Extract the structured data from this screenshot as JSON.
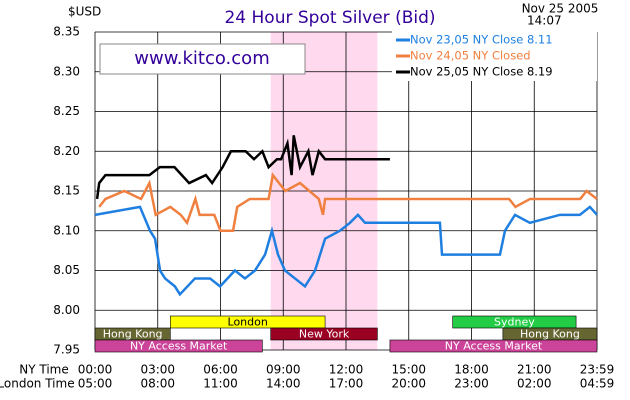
{
  "chart_data": {
    "type": "line",
    "title": "24 Hour Spot Silver (Bid)",
    "y_unit": "$USD",
    "date": "Nov 25 2005",
    "time": "14:07",
    "watermark": "www.kitco.com",
    "x_row_labels": [
      "NY Time",
      "London Time"
    ],
    "xlim": [
      0,
      24
    ],
    "xticks": [
      {
        "value": 0,
        "label": "00:00"
      },
      {
        "value": 3,
        "label": "03:00"
      },
      {
        "value": 6,
        "label": "06:00"
      },
      {
        "value": 9,
        "label": "09:00"
      },
      {
        "value": 12,
        "label": "12:00"
      },
      {
        "value": 15,
        "label": "15:00"
      },
      {
        "value": 18,
        "label": "18:00"
      },
      {
        "value": 21,
        "label": "21:00"
      },
      {
        "value": 24,
        "label": "23:59"
      }
    ],
    "london_tick_labels": [
      "05:00",
      "08:00",
      "11:00",
      "14:00",
      "17:00",
      "20:00",
      "23:00",
      "02:00",
      "04:59"
    ],
    "ylim": [
      7.95,
      8.35
    ],
    "yticks": [
      {
        "value": 7.95,
        "label": "7.95"
      },
      {
        "value": 8.0,
        "label": "8.00"
      },
      {
        "value": 8.05,
        "label": "8.05"
      },
      {
        "value": 8.1,
        "label": "8.10"
      },
      {
        "value": 8.15,
        "label": "8.15"
      },
      {
        "value": 8.2,
        "label": "8.20"
      },
      {
        "value": 8.25,
        "label": "8.25"
      },
      {
        "value": 8.3,
        "label": "8.30"
      },
      {
        "value": 8.35,
        "label": "8.35"
      }
    ],
    "grid": true,
    "highlight": {
      "start": 8.4,
      "end": 13.5,
      "color": "#ffdaee"
    },
    "series": [
      {
        "name": "Nov 23,05 NY Close 8.11",
        "color": "#1e7fe0",
        "x": [
          0,
          2.15,
          2.63,
          2.87,
          3.11,
          3.35,
          3.82,
          4.06,
          4.78,
          5.5,
          5.98,
          6.69,
          7.17,
          7.65,
          8.13,
          8.46,
          8.75,
          9.08,
          9.56,
          10.04,
          10.52,
          11.0,
          11.71,
          12.19,
          12.57,
          12.91,
          16.01,
          16.49,
          16.59,
          19.36,
          19.6,
          20.08,
          20.79,
          22.23,
          23.18,
          23.66,
          24
        ],
        "values": [
          8.12,
          8.13,
          8.1,
          8.09,
          8.05,
          8.04,
          8.03,
          8.02,
          8.04,
          8.04,
          8.03,
          8.05,
          8.04,
          8.05,
          8.07,
          8.1,
          8.07,
          8.05,
          8.04,
          8.03,
          8.05,
          8.09,
          8.1,
          8.11,
          8.12,
          8.11,
          8.11,
          8.11,
          8.07,
          8.07,
          8.1,
          8.12,
          8.11,
          8.12,
          8.12,
          8.13,
          8.12
        ]
      },
      {
        "name": "Nov 24,05 NY Closed",
        "color": "#f08040",
        "x": [
          0.2,
          0.5,
          1.4,
          2.2,
          2.6,
          2.9,
          3.6,
          4.1,
          4.4,
          4.8,
          5.0,
          5.7,
          6.0,
          6.6,
          6.8,
          7.4,
          8.3,
          8.5,
          9.1,
          9.8,
          10.7,
          10.9,
          11.0,
          19.8,
          20.1,
          20.8,
          23.2,
          23.5,
          24
        ],
        "values": [
          8.13,
          8.14,
          8.15,
          8.14,
          8.16,
          8.12,
          8.13,
          8.12,
          8.11,
          8.14,
          8.12,
          8.12,
          8.1,
          8.1,
          8.13,
          8.14,
          8.14,
          8.17,
          8.15,
          8.16,
          8.14,
          8.12,
          8.14,
          8.14,
          8.13,
          8.14,
          8.14,
          8.15,
          8.14
        ]
      },
      {
        "name": "Nov 25,05 NY Close 8.19",
        "color": "#000000",
        "x": [
          0.1,
          0.2,
          0.5,
          2.6,
          3.1,
          3.8,
          4.5,
          5.3,
          5.6,
          6.1,
          6.5,
          7.2,
          7.6,
          8.0,
          8.3,
          8.7,
          8.9,
          9.2,
          9.4,
          9.5,
          9.8,
          10.2,
          10.4,
          10.7,
          11.0,
          14.1
        ],
        "values": [
          8.14,
          8.16,
          8.17,
          8.17,
          8.18,
          8.18,
          8.16,
          8.17,
          8.16,
          8.18,
          8.2,
          8.2,
          8.19,
          8.2,
          8.18,
          8.19,
          8.19,
          8.21,
          8.17,
          8.22,
          8.18,
          8.2,
          8.17,
          8.2,
          8.19,
          8.19
        ]
      }
    ],
    "session_rows": [
      [
        {
          "label": "London",
          "start": 3.6,
          "end": 11.0,
          "color": "#ffff00",
          "text_color": "#000000"
        },
        {
          "label": "Sydney",
          "start": 17.1,
          "end": 23.0,
          "color": "#22cc44",
          "text_color": "#ffffff"
        }
      ],
      [
        {
          "label": "Hong Kong",
          "start": 0,
          "end": 3.6,
          "color": "#666633",
          "text_color": "#ffffff"
        },
        {
          "label": "New York",
          "start": 8.4,
          "end": 13.5,
          "color": "#990022",
          "text_color": "#ffffff"
        },
        {
          "label": "Hong Kong",
          "start": 19.5,
          "end": 24,
          "color": "#666633",
          "text_color": "#ffffff"
        }
      ],
      [
        {
          "label": "NY Access Market",
          "start": 0,
          "end": 8.0,
          "color": "#cc4499",
          "text_color": "#ffffff"
        },
        {
          "label": "NY Access Market",
          "start": 14.1,
          "end": 24,
          "color": "#cc4499",
          "text_color": "#ffffff"
        }
      ]
    ]
  }
}
